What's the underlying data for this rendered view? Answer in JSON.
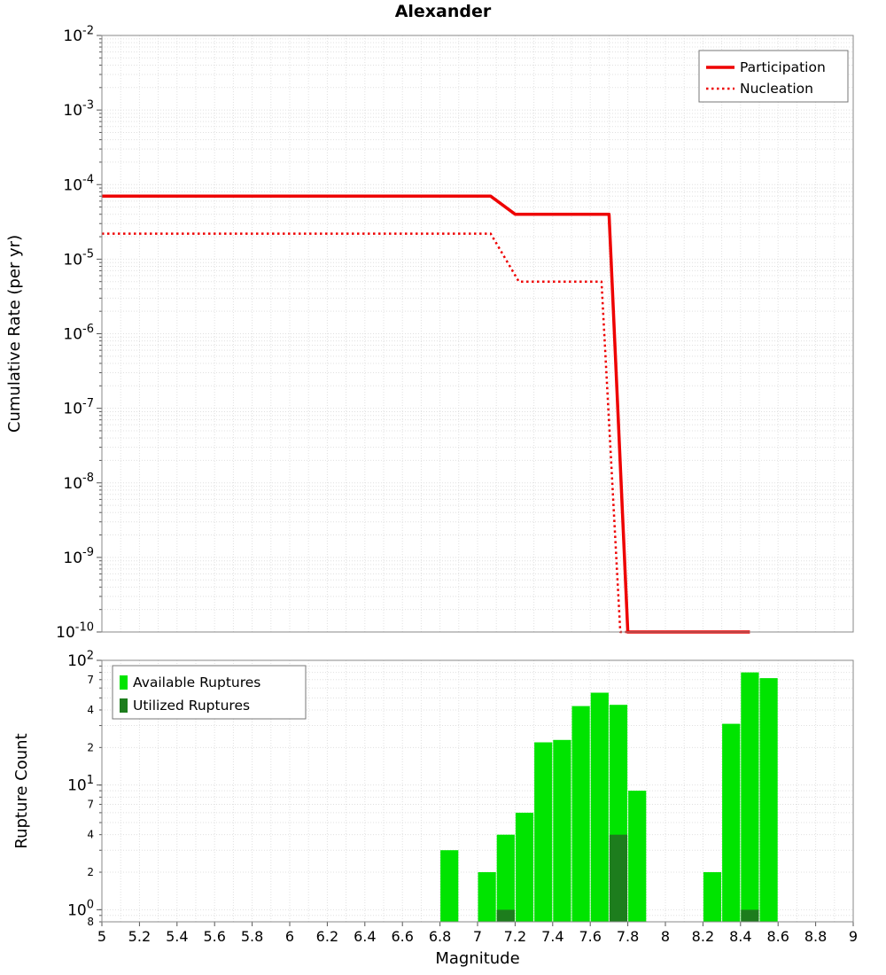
{
  "title": "Alexander",
  "colors": {
    "line_red": "#ee0000",
    "available_green": "#00e400",
    "utilized_green": "#1d7d1d",
    "grid": "#e0e0e0",
    "axis": "#8a8a8a",
    "tick": "#555555"
  },
  "chart_data": [
    {
      "type": "line",
      "title": "Alexander",
      "ylabel": "Cumulative Rate (per yr)",
      "x_axis": {
        "min": 5,
        "max": 9,
        "tick_step": 0.2
      },
      "y_axis": {
        "scale": "log",
        "min_exp": -10,
        "max_exp": -2,
        "tick_exponents": [
          -2,
          -3,
          -4,
          -5,
          -6,
          -7,
          -8,
          -9,
          -10
        ]
      },
      "legend": {
        "position": "top-right",
        "items": [
          "Participation",
          "Nucleation"
        ]
      },
      "series": [
        {
          "name": "Participation",
          "style": "solid",
          "width": 3.5,
          "color": "#ee0000",
          "points": [
            [
              5,
              7e-05
            ],
            [
              7.07,
              7e-05
            ],
            [
              7.2,
              4e-05
            ],
            [
              7.7,
              4e-05
            ],
            [
              7.8,
              1e-10
            ],
            [
              8.45,
              1e-10
            ]
          ]
        },
        {
          "name": "Nucleation",
          "style": "dotted",
          "width": 2.5,
          "color": "#ee0000",
          "points": [
            [
              5,
              2.2e-05
            ],
            [
              7.07,
              2.2e-05
            ],
            [
              7.22,
              5e-06
            ],
            [
              7.66,
              5e-06
            ],
            [
              7.76,
              1e-10
            ],
            [
              8.45,
              1e-10
            ]
          ]
        }
      ]
    },
    {
      "type": "bar",
      "xlabel": "Magnitude",
      "ylabel": "Rupture Count",
      "x_axis": {
        "min": 5,
        "max": 9,
        "tick_step": 0.2,
        "tick_labels": [
          "5",
          "5.2",
          "5.4",
          "5.6",
          "5.8",
          "6",
          "6.2",
          "6.4",
          "6.6",
          "6.8",
          "7",
          "7.2",
          "7.4",
          "7.6",
          "7.8",
          "8",
          "8.2",
          "8.4",
          "8.6",
          "8.8",
          "9"
        ]
      },
      "y_axis": {
        "scale": "log",
        "min": 0.8,
        "max": 100,
        "major_ticks": [
          1,
          10,
          100
        ],
        "minor_labeled_ticks": [
          0.8,
          2,
          4,
          7,
          20,
          40,
          70
        ]
      },
      "bin_width": 0.1,
      "legend": {
        "position": "top-left",
        "items": [
          "Available Ruptures",
          "Utilized Ruptures"
        ]
      },
      "series": [
        {
          "name": "Available Ruptures",
          "color": "#00e400",
          "bins": [
            [
              6.85,
              3
            ],
            [
              7.05,
              2
            ],
            [
              7.15,
              4
            ],
            [
              7.25,
              6
            ],
            [
              7.35,
              22
            ],
            [
              7.45,
              23
            ],
            [
              7.55,
              43
            ],
            [
              7.65,
              55
            ],
            [
              7.75,
              44
            ],
            [
              7.85,
              9
            ],
            [
              8.25,
              2
            ],
            [
              8.35,
              31
            ],
            [
              8.45,
              80
            ],
            [
              8.55,
              72
            ]
          ]
        },
        {
          "name": "Utilized Ruptures",
          "color": "#1d7d1d",
          "bins": [
            [
              7.15,
              1
            ],
            [
              7.75,
              4
            ],
            [
              8.45,
              1
            ]
          ]
        }
      ]
    }
  ]
}
